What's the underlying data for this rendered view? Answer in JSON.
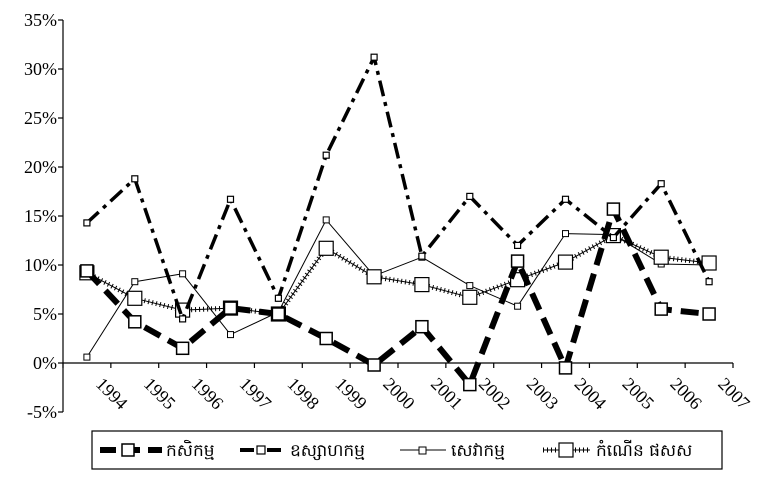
{
  "chart_data": {
    "type": "line",
    "title": "",
    "xlabel": "",
    "ylabel": "",
    "categories": [
      "1994",
      "1995",
      "1996",
      "1997",
      "1998",
      "1999",
      "2000",
      "2001",
      "2002",
      "2003",
      "2004",
      "2005",
      "2006",
      "2007"
    ],
    "ylim": [
      -5,
      35
    ],
    "yticks": [
      -5,
      0,
      5,
      10,
      15,
      20,
      25,
      30,
      35
    ],
    "ytick_labels": [
      "-5%",
      "0%",
      "5%",
      "10%",
      "15%",
      "20%",
      "25%",
      "30%",
      "35%"
    ],
    "legend_position": "bottom",
    "series": [
      {
        "name": "កសិកម្ម",
        "style": "thick-dash",
        "color": "#000000",
        "values": [
          9.4,
          4.2,
          1.5,
          5.6,
          5.0,
          2.5,
          -0.2,
          3.7,
          -2.2,
          10.4,
          -0.5,
          15.7,
          5.5,
          5.0
        ]
      },
      {
        "name": "ឧស្សាហកម្ម",
        "style": "dash-dot",
        "color": "#000000",
        "values": [
          14.3,
          18.8,
          4.5,
          16.7,
          6.6,
          21.2,
          31.2,
          10.9,
          17.0,
          12.0,
          16.7,
          12.8,
          18.3,
          8.3
        ]
      },
      {
        "name": "សេវាកម្ម",
        "style": "thin",
        "color": "#000000",
        "values": [
          0.6,
          8.3,
          9.1,
          2.9,
          5.2,
          14.6,
          8.9,
          10.8,
          7.9,
          5.8,
          13.2,
          13.1,
          10.1,
          10.0
        ]
      },
      {
        "name": "កំណើន ផសស",
        "style": "hatched",
        "color": "#000000",
        "values": [
          9.2,
          6.6,
          5.4,
          5.6,
          5.0,
          11.7,
          8.8,
          8.0,
          6.7,
          8.5,
          10.3,
          13.0,
          10.8,
          10.2
        ]
      }
    ]
  }
}
